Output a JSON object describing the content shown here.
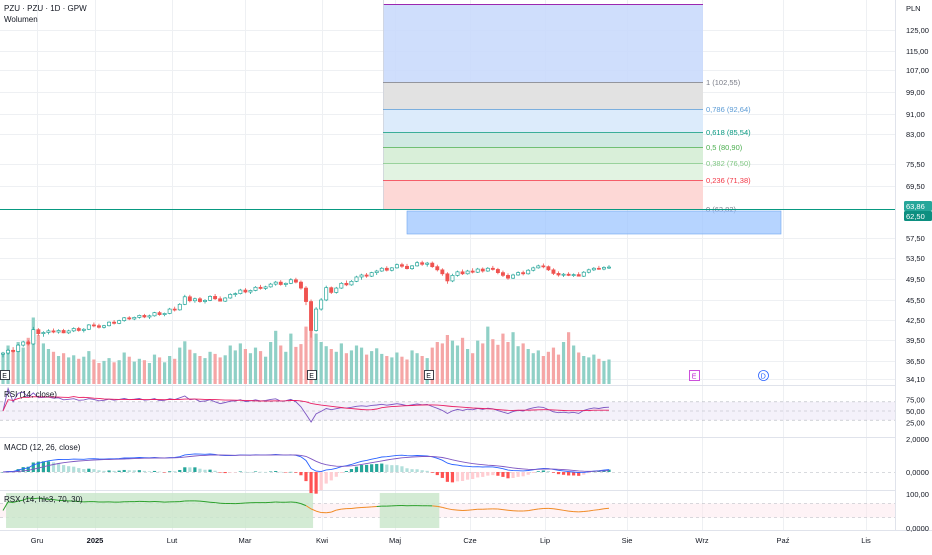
{
  "header": {
    "symbol_line": "PZU · PZU · 1D · GPW",
    "volume_label": "Wolumen",
    "currency": "PLN"
  },
  "colors": {
    "up": "#26a69a",
    "down": "#ef5350",
    "up_volume": "#8fd0c6",
    "down_volume": "#f5a6a6",
    "grid": "#eef0f3",
    "accent_line": "#089981",
    "price_tag_top": "#26a69a",
    "price_tag_bottom": "#0c8f80",
    "rsi_line": "#7e57c2",
    "rsi_ma": "#e91e63",
    "macd_line": "#2962ff",
    "signal_line": "#7e57c2",
    "rsx_line": "#f08a24",
    "rsx_green": "#2ca02c"
  },
  "price_axis": {
    "ticks": [
      "125,00",
      "115,00",
      "107,00",
      "99,00",
      "91,00",
      "83,00",
      "75,50",
      "69,50",
      "57,50",
      "53,50",
      "49,50",
      "45,50",
      "42,50",
      "39,50",
      "36,50",
      "34,10"
    ],
    "current_price_tags": [
      "63,86",
      "62,50"
    ]
  },
  "time_axis": {
    "labels": [
      "Gru",
      "2025",
      "Lut",
      "Mar",
      "Kwi",
      "Maj",
      "Cze",
      "Lip",
      "Sie",
      "Wrz",
      "Paź",
      "Lis"
    ]
  },
  "fibonacci": {
    "levels": [
      {
        "label": "1 (102,55)",
        "color": "#787b86"
      },
      {
        "label": "0,786 (92,64)",
        "color": "#5b9bd5"
      },
      {
        "label": "0,618 (85,54)",
        "color": "#089981"
      },
      {
        "label": "0,5 (80,90)",
        "color": "#4caf50"
      },
      {
        "label": "0,382 (76,50)",
        "color": "#81c784"
      },
      {
        "label": "0,236 (71,38)",
        "color": "#f23645"
      },
      {
        "label": "0 (63,82)",
        "color": "#787b86"
      }
    ]
  },
  "events": {
    "earnings_marker": "E",
    "dividend_marker": "D"
  },
  "rsi": {
    "label": "RSI (14, close)",
    "ticks": [
      "75,00",
      "50,00",
      "25,00"
    ]
  },
  "macd": {
    "label": "MACD (12, 26, close)",
    "ticks": [
      "2,0000",
      "0,0000"
    ]
  },
  "rsx": {
    "label": "RSX (14, hlc3, 70, 30)",
    "ticks": [
      "100,00",
      "0,0000"
    ]
  },
  "chart_data": {
    "type": "candlestick",
    "price_range": [
      34.1,
      130
    ],
    "candles_ohlc": [
      [
        40.6,
        41.2,
        39.8,
        40.9
      ],
      [
        40.9,
        42.0,
        40.5,
        41.6
      ],
      [
        41.6,
        42.4,
        41.0,
        41.3
      ],
      [
        41.3,
        43.2,
        41.1,
        42.9
      ],
      [
        42.9,
        44.0,
        42.5,
        43.7
      ],
      [
        43.7,
        44.2,
        42.8,
        43.2
      ],
      [
        43.2,
        47.5,
        43.0,
        46.8
      ],
      [
        46.8,
        47.2,
        45.3,
        45.8
      ],
      [
        45.8,
        46.4,
        45.0,
        46.1
      ],
      [
        46.1,
        46.9,
        45.6,
        46.5
      ],
      [
        46.5,
        47.1,
        45.9,
        46.2
      ],
      [
        46.2,
        46.9,
        45.8,
        46.6
      ],
      [
        46.6,
        47.0,
        45.9,
        46.0
      ],
      [
        46.0,
        46.8,
        45.7,
        46.5
      ],
      [
        46.5,
        47.4,
        46.2,
        47.1
      ],
      [
        47.1,
        47.5,
        46.3,
        46.6
      ],
      [
        46.6,
        47.2,
        46.1,
        46.9
      ],
      [
        46.9,
        48.2,
        46.7,
        48.0
      ],
      [
        48.0,
        48.6,
        47.4,
        47.8
      ],
      [
        47.8,
        48.3,
        47.1,
        47.4
      ],
      [
        47.4,
        48.0,
        47.1,
        47.8
      ],
      [
        47.8,
        48.9,
        47.6,
        48.7
      ],
      [
        48.7,
        49.2,
        48.1,
        48.4
      ],
      [
        48.4,
        49.3,
        48.2,
        49.1
      ],
      [
        49.1,
        50.0,
        48.8,
        49.8
      ],
      [
        49.8,
        50.2,
        49.2,
        49.5
      ],
      [
        49.5,
        50.1,
        49.2,
        49.9
      ],
      [
        49.9,
        50.6,
        49.6,
        50.4
      ],
      [
        50.4,
        50.8,
        49.7,
        50.0
      ],
      [
        50.0,
        50.6,
        49.5,
        50.3
      ],
      [
        50.3,
        51.3,
        50.1,
        51.1
      ],
      [
        51.1,
        51.5,
        50.3,
        50.6
      ],
      [
        50.6,
        51.1,
        50.2,
        50.9
      ],
      [
        50.9,
        52.3,
        50.7,
        52.0
      ],
      [
        52.0,
        52.6,
        51.4,
        51.8
      ],
      [
        51.8,
        53.5,
        51.6,
        53.2
      ],
      [
        53.2,
        55.6,
        53.0,
        55.1
      ],
      [
        55.1,
        55.6,
        53.7,
        54.1
      ],
      [
        54.1,
        54.9,
        53.6,
        54.6
      ],
      [
        54.6,
        55.0,
        53.6,
        53.9
      ],
      [
        53.9,
        54.5,
        53.4,
        54.2
      ],
      [
        54.2,
        55.5,
        54.0,
        55.2
      ],
      [
        55.2,
        55.8,
        54.3,
        54.6
      ],
      [
        54.6,
        55.2,
        53.9,
        54.0
      ],
      [
        54.0,
        55.0,
        53.8,
        54.8
      ],
      [
        54.8,
        56.0,
        54.6,
        55.7
      ],
      [
        55.7,
        56.2,
        55.1,
        55.9
      ],
      [
        55.9,
        57.1,
        55.7,
        56.8
      ],
      [
        56.8,
        57.3,
        56.0,
        56.3
      ],
      [
        56.3,
        56.9,
        55.8,
        56.7
      ],
      [
        56.7,
        57.8,
        56.5,
        57.5
      ],
      [
        57.5,
        58.1,
        56.9,
        57.2
      ],
      [
        57.2,
        57.9,
        56.8,
        57.6
      ],
      [
        57.6,
        58.6,
        57.4,
        58.3
      ],
      [
        58.3,
        59.1,
        57.9,
        58.8
      ],
      [
        58.8,
        59.3,
        57.9,
        58.2
      ],
      [
        58.2,
        58.7,
        57.6,
        58.5
      ],
      [
        58.5,
        59.8,
        58.3,
        59.4
      ],
      [
        59.4,
        59.9,
        58.5,
        58.8
      ],
      [
        58.8,
        59.2,
        56.9,
        57.3
      ],
      [
        57.3,
        57.8,
        53.0,
        53.9
      ],
      [
        53.9,
        54.4,
        44.8,
        46.6
      ],
      [
        46.6,
        52.5,
        46.3,
        52.0
      ],
      [
        52.0,
        54.8,
        51.6,
        54.3
      ],
      [
        54.3,
        57.9,
        54.0,
        57.4
      ],
      [
        57.4,
        57.7,
        55.8,
        56.2
      ],
      [
        56.2,
        57.6,
        55.9,
        57.3
      ],
      [
        57.3,
        58.8,
        57.1,
        58.5
      ],
      [
        58.5,
        59.2,
        57.8,
        58.1
      ],
      [
        58.1,
        59.3,
        57.9,
        59.0
      ],
      [
        59.0,
        60.4,
        58.8,
        60.1
      ],
      [
        60.1,
        60.9,
        59.4,
        60.6
      ],
      [
        60.6,
        61.1,
        59.9,
        60.3
      ],
      [
        60.3,
        61.4,
        60.1,
        61.2
      ],
      [
        61.2,
        61.9,
        60.6,
        61.6
      ],
      [
        61.6,
        62.6,
        61.4,
        62.3
      ],
      [
        62.3,
        62.8,
        61.5,
        61.8
      ],
      [
        61.8,
        62.6,
        61.5,
        62.4
      ],
      [
        62.4,
        63.5,
        62.2,
        63.2
      ],
      [
        63.2,
        63.7,
        62.4,
        62.8
      ],
      [
        62.8,
        63.4,
        62.0,
        62.2
      ],
      [
        62.2,
        63.1,
        61.9,
        62.9
      ],
      [
        62.9,
        64.1,
        62.7,
        63.7
      ],
      [
        63.7,
        64.2,
        62.9,
        63.3
      ],
      [
        63.3,
        63.9,
        62.7,
        63.6
      ],
      [
        63.6,
        64.0,
        62.4,
        62.7
      ],
      [
        62.7,
        63.2,
        61.5,
        61.9
      ],
      [
        61.9,
        62.3,
        60.4,
        60.9
      ],
      [
        60.9,
        61.3,
        58.4,
        59.1
      ],
      [
        59.1,
        60.9,
        58.8,
        60.5
      ],
      [
        60.5,
        61.7,
        60.2,
        61.4
      ],
      [
        61.4,
        62.0,
        60.6,
        60.9
      ],
      [
        60.9,
        61.9,
        60.7,
        61.6
      ],
      [
        61.6,
        62.3,
        61.0,
        61.3
      ],
      [
        61.3,
        62.4,
        61.1,
        62.1
      ],
      [
        62.1,
        62.5,
        61.2,
        61.6
      ],
      [
        61.6,
        62.6,
        61.4,
        62.3
      ],
      [
        62.3,
        62.9,
        61.7,
        62.0
      ],
      [
        62.0,
        62.4,
        60.8,
        61.2
      ],
      [
        61.2,
        61.7,
        60.1,
        60.5
      ],
      [
        60.5,
        61.0,
        59.4,
        59.8
      ],
      [
        59.8,
        60.9,
        59.6,
        60.6
      ],
      [
        60.6,
        61.5,
        60.4,
        61.2
      ],
      [
        61.2,
        61.7,
        60.5,
        60.9
      ],
      [
        60.9,
        62.1,
        60.7,
        61.8
      ],
      [
        61.8,
        62.7,
        61.5,
        62.4
      ],
      [
        62.4,
        63.2,
        62.2,
        62.9
      ],
      [
        62.9,
        63.5,
        62.3,
        62.7
      ],
      [
        62.7,
        63.0,
        61.6,
        61.9
      ],
      [
        61.9,
        62.3,
        60.6,
        61.0
      ],
      [
        61.0,
        61.5,
        60.2,
        60.6
      ],
      [
        60.6,
        61.1,
        60.1,
        60.8
      ],
      [
        60.8,
        61.3,
        60.3,
        60.5
      ],
      [
        60.5,
        61.0,
        60.1,
        60.7
      ],
      [
        60.7,
        61.3,
        60.4,
        60.3
      ],
      [
        60.3,
        61.6,
        60.1,
        61.3
      ],
      [
        61.3,
        62.2,
        61.0,
        61.9
      ],
      [
        61.9,
        62.6,
        61.6,
        62.3
      ],
      [
        62.3,
        62.9,
        61.9,
        62.1
      ],
      [
        62.1,
        62.8,
        61.8,
        62.5
      ],
      [
        62.5,
        63.1,
        62.1,
        62.6
      ]
    ],
    "volume_relative": [
      0.42,
      0.55,
      0.48,
      0.6,
      0.52,
      0.66,
      0.95,
      0.7,
      0.58,
      0.5,
      0.46,
      0.4,
      0.44,
      0.38,
      0.41,
      0.36,
      0.39,
      0.47,
      0.35,
      0.3,
      0.33,
      0.37,
      0.31,
      0.34,
      0.45,
      0.39,
      0.32,
      0.36,
      0.34,
      0.3,
      0.42,
      0.38,
      0.31,
      0.4,
      0.36,
      0.52,
      0.61,
      0.49,
      0.44,
      0.4,
      0.37,
      0.46,
      0.43,
      0.38,
      0.41,
      0.55,
      0.48,
      0.58,
      0.5,
      0.44,
      0.52,
      0.47,
      0.39,
      0.6,
      0.76,
      0.55,
      0.46,
      0.72,
      0.53,
      0.57,
      0.82,
      0.98,
      0.72,
      0.6,
      0.54,
      0.5,
      0.46,
      0.58,
      0.44,
      0.48,
      0.55,
      0.52,
      0.42,
      0.47,
      0.51,
      0.43,
      0.4,
      0.38,
      0.45,
      0.39,
      0.35,
      0.48,
      0.44,
      0.4,
      0.37,
      0.52,
      0.6,
      0.58,
      0.7,
      0.62,
      0.55,
      0.66,
      0.5,
      0.44,
      0.62,
      0.58,
      0.82,
      0.64,
      0.56,
      0.72,
      0.6,
      0.74,
      0.54,
      0.58,
      0.5,
      0.44,
      0.48,
      0.4,
      0.46,
      0.52,
      0.42,
      0.6,
      0.74,
      0.55,
      0.45,
      0.4,
      0.38,
      0.42,
      0.36,
      0.33,
      0.35
    ]
  }
}
